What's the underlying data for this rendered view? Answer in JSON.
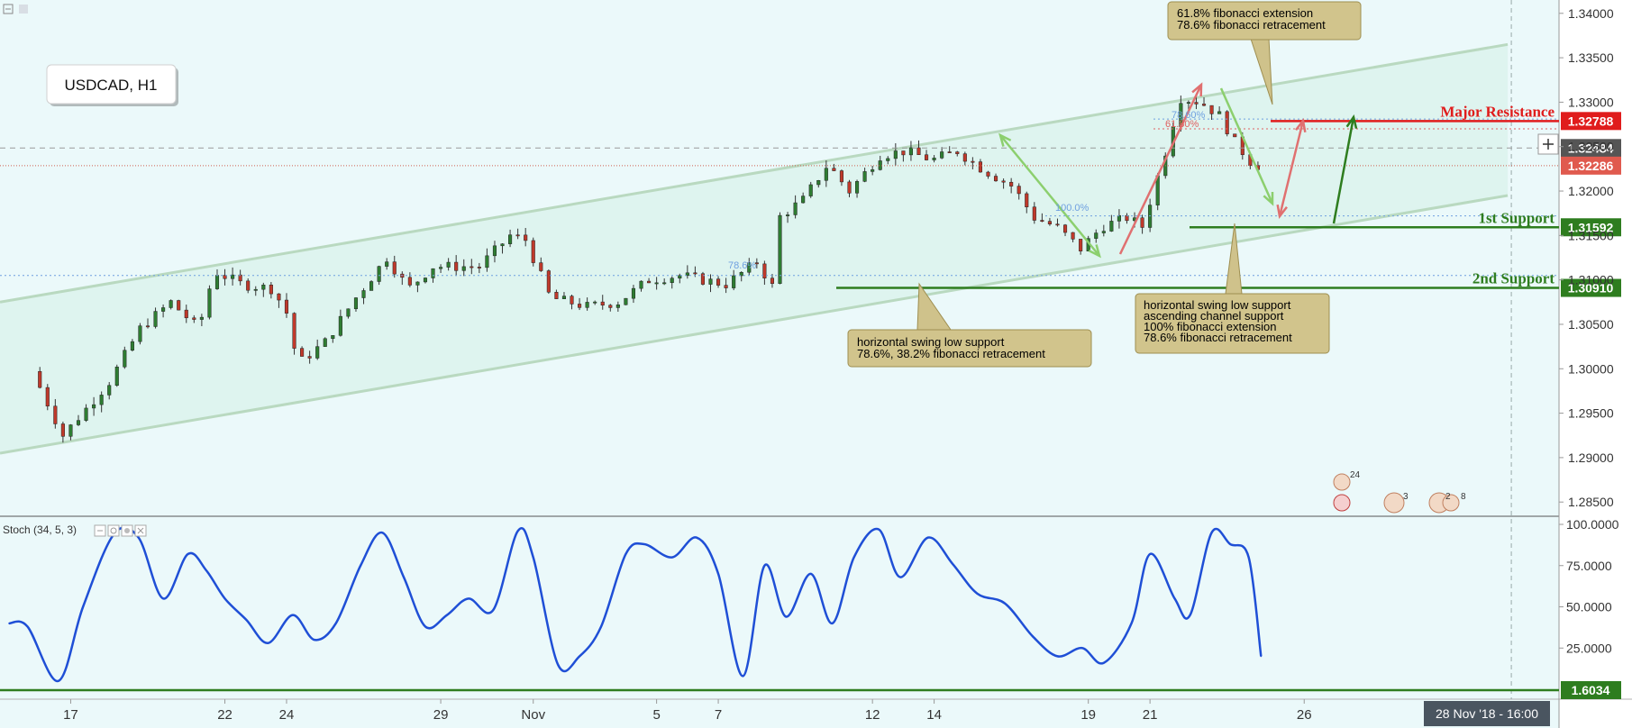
{
  "chart_data": [
    {
      "type": "candlestick",
      "symbol_label": "USDCAD, H1",
      "ylim": [
        1.2835,
        1.3415
      ],
      "yticks": [
        1.285,
        1.29,
        1.295,
        1.3,
        1.305,
        1.31,
        1.315,
        1.32,
        1.325,
        1.33,
        1.335,
        1.34
      ],
      "ytick_labels": [
        "1.28500",
        "1.29000",
        "1.29500",
        "1.30000",
        "1.30500",
        "1.31000",
        "1.31500",
        "1.32000",
        "1.32500",
        "1.33000",
        "1.33500",
        "1.34000"
      ],
      "xlim_days": [
        0,
        50
      ],
      "xticks": [
        {
          "day": 2,
          "label": "17"
        },
        {
          "day": 7,
          "label": "22"
        },
        {
          "day": 9,
          "label": "24"
        },
        {
          "day": 14,
          "label": "29"
        },
        {
          "day": 17,
          "label": "Nov"
        },
        {
          "day": 21,
          "label": "5"
        },
        {
          "day": 23,
          "label": "7"
        },
        {
          "day": 28,
          "label": "12"
        },
        {
          "day": 30,
          "label": "14"
        },
        {
          "day": 35,
          "label": "19"
        },
        {
          "day": 37,
          "label": "21"
        },
        {
          "day": 42,
          "label": "26"
        }
      ],
      "cursor_label": "28 Nov '18 - 16:00",
      "candles_note": "approximate daily path of hourly candles",
      "price_path": [
        {
          "day": 1.0,
          "price": 1.2997
        },
        {
          "day": 2.0,
          "price": 1.2925
        },
        {
          "day": 3.5,
          "price": 1.2985
        },
        {
          "day": 4.5,
          "price": 1.3045
        },
        {
          "day": 5.5,
          "price": 1.3075
        },
        {
          "day": 6.4,
          "price": 1.3045
        },
        {
          "day": 6.9,
          "price": 1.311
        },
        {
          "day": 7.8,
          "price": 1.3095
        },
        {
          "day": 8.8,
          "price": 1.309
        },
        {
          "day": 9.3,
          "price": 1.306
        },
        {
          "day": 9.6,
          "price": 1.3005
        },
        {
          "day": 10.5,
          "price": 1.303
        },
        {
          "day": 11.5,
          "price": 1.308
        },
        {
          "day": 12.5,
          "price": 1.3125
        },
        {
          "day": 13.2,
          "price": 1.309
        },
        {
          "day": 14.0,
          "price": 1.3115
        },
        {
          "day": 15.5,
          "price": 1.3115
        },
        {
          "day": 16.5,
          "price": 1.315
        },
        {
          "day": 17.0,
          "price": 1.3145
        },
        {
          "day": 17.8,
          "price": 1.308
        },
        {
          "day": 19.0,
          "price": 1.307
        },
        {
          "day": 20.0,
          "price": 1.3075
        },
        {
          "day": 21.0,
          "price": 1.31
        },
        {
          "day": 22.0,
          "price": 1.3105
        },
        {
          "day": 23.5,
          "price": 1.3095
        },
        {
          "day": 24.5,
          "price": 1.312
        },
        {
          "day": 25.0,
          "price": 1.3093
        },
        {
          "day": 25.2,
          "price": 1.317
        },
        {
          "day": 26.0,
          "price": 1.319
        },
        {
          "day": 26.8,
          "price": 1.323
        },
        {
          "day": 27.5,
          "price": 1.32
        },
        {
          "day": 28.5,
          "price": 1.324
        },
        {
          "day": 29.3,
          "price": 1.3245
        },
        {
          "day": 30.2,
          "price": 1.3235
        },
        {
          "day": 31.0,
          "price": 1.3245
        },
        {
          "day": 31.8,
          "price": 1.3225
        },
        {
          "day": 32.8,
          "price": 1.3205
        },
        {
          "day": 33.5,
          "price": 1.317
        },
        {
          "day": 34.2,
          "price": 1.316
        },
        {
          "day": 35.0,
          "price": 1.3135
        },
        {
          "day": 35.7,
          "price": 1.316
        },
        {
          "day": 36.5,
          "price": 1.317
        },
        {
          "day": 37.0,
          "price": 1.316
        },
        {
          "day": 37.8,
          "price": 1.325
        },
        {
          "day": 38.2,
          "price": 1.3305
        },
        {
          "day": 38.9,
          "price": 1.33
        },
        {
          "day": 39.5,
          "price": 1.3285
        },
        {
          "day": 40.0,
          "price": 1.3255
        },
        {
          "day": 40.6,
          "price": 1.3229
        }
      ],
      "levels": [
        {
          "price": 1.32788,
          "label": "Major Resistance",
          "tag": "1.32788",
          "color": "#e01c1c"
        },
        {
          "price": 1.32484,
          "label": "",
          "tag": "1.32484",
          "color": "#555555"
        },
        {
          "price": 1.32286,
          "label": "",
          "tag": "1.32286",
          "color": "#e05a4e"
        },
        {
          "price": 1.31592,
          "label": "1st Support",
          "tag": "1.31592",
          "color": "#2e7d1f"
        },
        {
          "price": 1.3091,
          "label": "2nd Support",
          "tag": "1.30910",
          "color": "#2e7d1f"
        }
      ],
      "fib_labels": [
        "78.60%",
        "61.80%",
        "100.0%",
        "78.6%"
      ],
      "annotations": [
        {
          "lines": [
            "61.8% fibonacci extension",
            "78.6% fibonacci retracement"
          ]
        },
        {
          "lines": [
            "horizontal swing low support",
            "78.6%, 38.2% fibonacci retracement"
          ]
        },
        {
          "lines": [
            "horizontal swing low support",
            "ascending channel support",
            "100% fibonacci extension",
            "78.6% fibonacci retracement"
          ]
        }
      ]
    },
    {
      "type": "line",
      "title": "Stoch (34, 5, 3)",
      "ylim": [
        0,
        100
      ],
      "yticks": [
        25,
        50,
        75,
        100
      ],
      "ytick_labels": [
        "25.0000",
        "50.0000",
        "75.0000",
        "100.0000"
      ],
      "level_tag": "1.6034",
      "series": [
        {
          "color": "#1f4fd6",
          "x": [
            0.0,
            0.6,
            1.6,
            2.4,
            3.4,
            4.2,
            5.0,
            5.8,
            6.4,
            7.0,
            7.7,
            8.4,
            9.2,
            9.9,
            10.6,
            11.4,
            12.1,
            12.8,
            13.5,
            14.2,
            14.9,
            15.7,
            16.5,
            17.0,
            17.8,
            18.5,
            19.2,
            20.0,
            20.6,
            21.5,
            22.3,
            23.0,
            23.8,
            24.5,
            25.2,
            26.0,
            26.7,
            27.4,
            28.2,
            28.9,
            29.8,
            30.6,
            31.4,
            32.3,
            33.2,
            34.0,
            34.8,
            35.5,
            36.4,
            37.0,
            37.8,
            38.3,
            39.0,
            39.6,
            40.2,
            40.6
          ],
          "values": [
            40,
            38,
            5,
            50,
            94,
            92,
            55,
            82,
            72,
            55,
            42,
            28,
            45,
            30,
            40,
            75,
            95,
            68,
            38,
            45,
            55,
            48,
            96,
            80,
            15,
            20,
            38,
            82,
            88,
            80,
            92,
            70,
            8,
            75,
            44,
            70,
            40,
            80,
            97,
            68,
            92,
            76,
            58,
            52,
            32,
            20,
            25,
            16,
            40,
            82,
            55,
            45,
            95,
            88,
            80,
            20
          ]
        }
      ]
    }
  ]
}
